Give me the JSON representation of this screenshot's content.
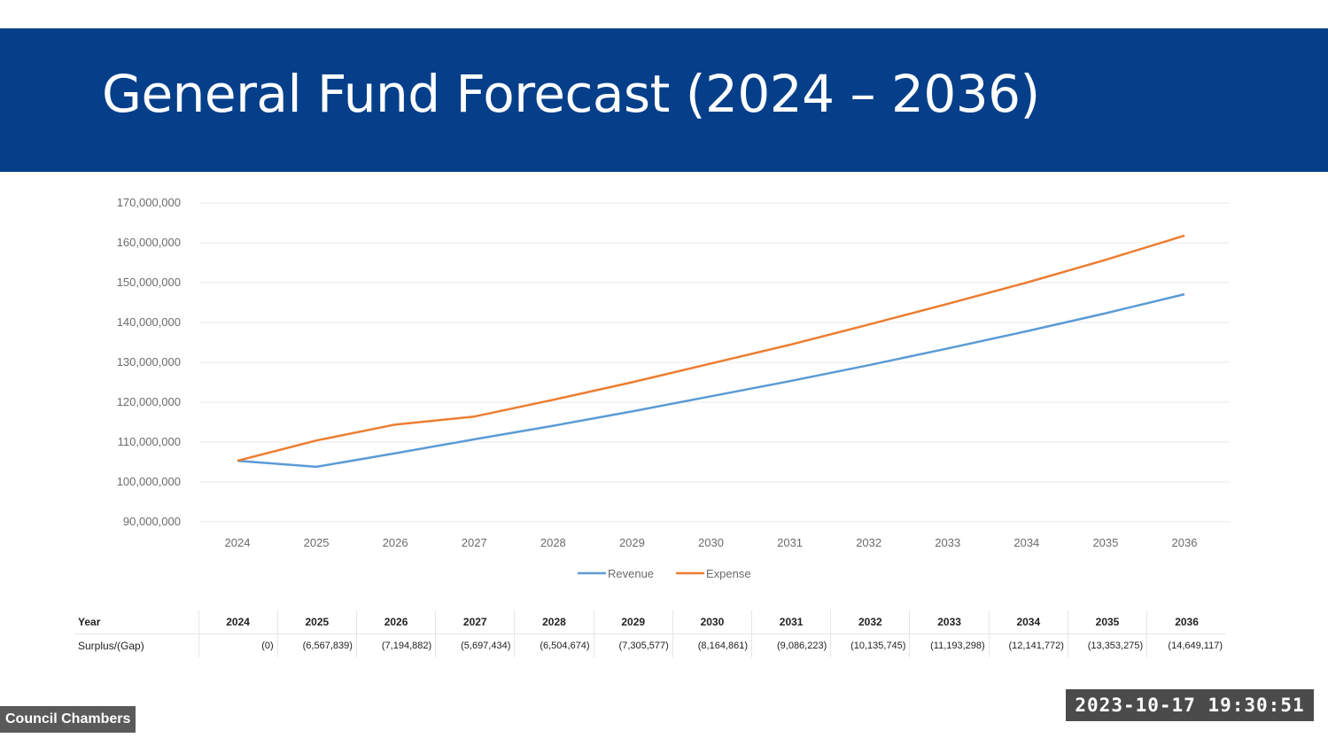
{
  "slide": {
    "title": "General Fund Forecast (2024 – 2036)"
  },
  "chart_data": {
    "type": "line",
    "title": "",
    "xlabel": "",
    "ylabel": "",
    "categories": [
      "2024",
      "2025",
      "2026",
      "2027",
      "2028",
      "2029",
      "2030",
      "2031",
      "2032",
      "2033",
      "2034",
      "2035",
      "2036"
    ],
    "y_ticks": [
      "90,000,000",
      "100,000,000",
      "110,000,000",
      "120,000,000",
      "130,000,000",
      "140,000,000",
      "150,000,000",
      "160,000,000",
      "170,000,000"
    ],
    "ylim": [
      90000000,
      170000000
    ],
    "grid": true,
    "legend_position": "bottom",
    "series": [
      {
        "name": "Revenue",
        "color": "#5b9bd5",
        "values": [
          105300000,
          103800000,
          107200000,
          110700000,
          114100000,
          117700000,
          121500000,
          125300000,
          129300000,
          133500000,
          137800000,
          142300000,
          147100000
        ]
      },
      {
        "name": "Expense",
        "color": "#ed7d31",
        "values": [
          105300000,
          110400000,
          114400000,
          116400000,
          120600000,
          125000000,
          129700000,
          134400000,
          139500000,
          144700000,
          150000000,
          155700000,
          161800000
        ]
      }
    ]
  },
  "table": {
    "year_label": "Year",
    "years": [
      "2024",
      "2025",
      "2026",
      "2027",
      "2028",
      "2029",
      "2030",
      "2031",
      "2032",
      "2033",
      "2034",
      "2035",
      "2036"
    ],
    "surplus_label": "Surplus/(Gap)",
    "surplus_values": [
      "(0)",
      "(6,567,839)",
      "(7,194,882)",
      "(5,697,434)",
      "(6,504,674)",
      "(7,305,577)",
      "(8,164,861)",
      "(9,086,223)",
      "(10,135,745)",
      "(11,193,298)",
      "(12,141,772)",
      "(13,353,275)",
      "(14,649,117)"
    ]
  },
  "overlay": {
    "venue": "Council Chambers",
    "timestamp": "2023-10-17  19:30:51"
  }
}
